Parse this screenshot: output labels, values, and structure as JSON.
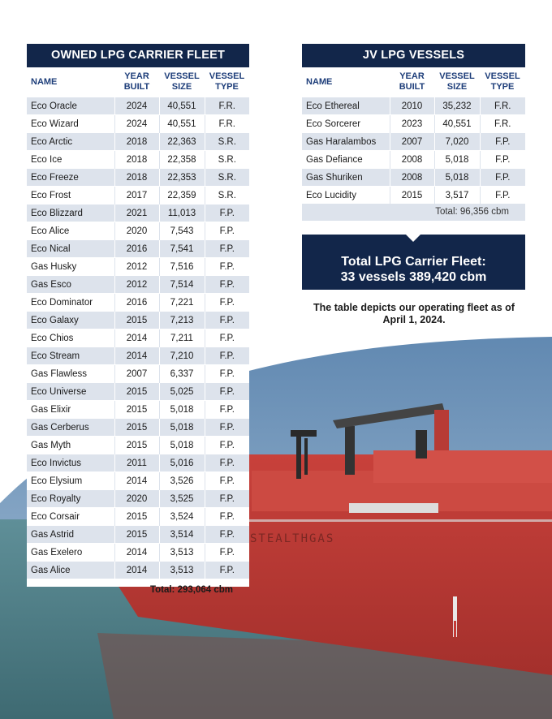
{
  "owned": {
    "title": "OWNED LPG CARRIER FLEET",
    "headers": {
      "name": "NAME",
      "year": [
        "YEAR",
        "BUILT"
      ],
      "size": [
        "VESSEL",
        "SIZE"
      ],
      "type": [
        "VESSEL",
        "TYPE"
      ]
    },
    "rows": [
      {
        "name": "Eco Oracle",
        "year": "2024",
        "size": "40,551",
        "type": "F.R."
      },
      {
        "name": "Eco Wizard",
        "year": "2024",
        "size": "40,551",
        "type": "F.R."
      },
      {
        "name": "Eco Arctic",
        "year": "2018",
        "size": "22,363",
        "type": "S.R."
      },
      {
        "name": "Eco Ice",
        "year": "2018",
        "size": "22,358",
        "type": "S.R."
      },
      {
        "name": "Eco Freeze",
        "year": "2018",
        "size": "22,353",
        "type": "S.R."
      },
      {
        "name": "Eco Frost",
        "year": "2017",
        "size": "22,359",
        "type": "S.R."
      },
      {
        "name": "Eco Blizzard",
        "year": "2021",
        "size": "11,013",
        "type": "F.P."
      },
      {
        "name": "Eco Alice",
        "year": "2020",
        "size": "7,543",
        "type": "F.P."
      },
      {
        "name": "Eco Nical",
        "year": "2016",
        "size": "7,541",
        "type": "F.P."
      },
      {
        "name": "Gas Husky",
        "year": "2012",
        "size": "7,516",
        "type": "F.P."
      },
      {
        "name": "Gas Esco",
        "year": "2012",
        "size": "7,514",
        "type": "F.P."
      },
      {
        "name": "Eco Dominator",
        "year": "2016",
        "size": "7,221",
        "type": "F.P."
      },
      {
        "name": "Eco Galaxy",
        "year": "2015",
        "size": "7,213",
        "type": "F.P."
      },
      {
        "name": "Eco Chios",
        "year": "2014",
        "size": "7,211",
        "type": "F.P."
      },
      {
        "name": "Eco Stream",
        "year": "2014",
        "size": "7,210",
        "type": "F.P."
      },
      {
        "name": "Gas Flawless",
        "year": "2007",
        "size": "6,337",
        "type": "F.P."
      },
      {
        "name": "Eco Universe",
        "year": "2015",
        "size": "5,025",
        "type": "F.P."
      },
      {
        "name": "Gas Elixir",
        "year": "2015",
        "size": "5,018",
        "type": "F.P."
      },
      {
        "name": "Gas Cerberus",
        "year": "2015",
        "size": "5,018",
        "type": "F.P."
      },
      {
        "name": "Gas Myth",
        "year": "2015",
        "size": "5,018",
        "type": "F.P."
      },
      {
        "name": "Eco Invictus",
        "year": "2011",
        "size": "5,016",
        "type": "F.P."
      },
      {
        "name": "Eco Elysium",
        "year": "2014",
        "size": "3,526",
        "type": "F.P."
      },
      {
        "name": "Eco Royalty",
        "year": "2020",
        "size": "3,525",
        "type": "F.P."
      },
      {
        "name": "Eco Corsair",
        "year": "2015",
        "size": "3,524",
        "type": "F.P."
      },
      {
        "name": "Gas Astrid",
        "year": "2015",
        "size": "3,514",
        "type": "F.P."
      },
      {
        "name": "Gas Exelero",
        "year": "2014",
        "size": "3,513",
        "type": "F.P."
      },
      {
        "name": "Gas Alice",
        "year": "2014",
        "size": "3,513",
        "type": "F.P."
      }
    ],
    "total": "Total: 293,064 cbm"
  },
  "jv": {
    "title": "JV LPG VESSELS",
    "headers": {
      "name": "NAME",
      "year": [
        "YEAR",
        "BUILT"
      ],
      "size": [
        "VESSEL",
        "SIZE"
      ],
      "type": [
        "VESSEL",
        "TYPE"
      ]
    },
    "rows": [
      {
        "name": "Eco Ethereal",
        "year": "2010",
        "size": "35,232",
        "type": "F.R."
      },
      {
        "name": "Eco Sorcerer",
        "year": "2023",
        "size": "40,551",
        "type": "F.R."
      },
      {
        "name": "Gas Haralambos",
        "year": "2007",
        "size": "7,020",
        "type": "F.P."
      },
      {
        "name": "Gas Defiance",
        "year": "2008",
        "size": "5,018",
        "type": "F.P."
      },
      {
        "name": "Gas Shuriken",
        "year": "2008",
        "size": "5,018",
        "type": "F.P."
      },
      {
        "name": "Eco Lucidity",
        "year": "2015",
        "size": "3,517",
        "type": "F.P."
      }
    ],
    "total": "Total: 96,356 cbm"
  },
  "summary": {
    "title": "Total LPG Carrier Fleet:",
    "value": "33 vessels 389,420 cbm"
  },
  "caption": [
    "The table depicts our operating fleet as of",
    "April 1, 2024."
  ],
  "photo": {
    "hull_text": "STEALTHGAS"
  },
  "colors": {
    "navy": "#12264a",
    "header_text": "#1e3e7a",
    "row_shade": "#dde3ec",
    "hull": "#c43a36"
  }
}
